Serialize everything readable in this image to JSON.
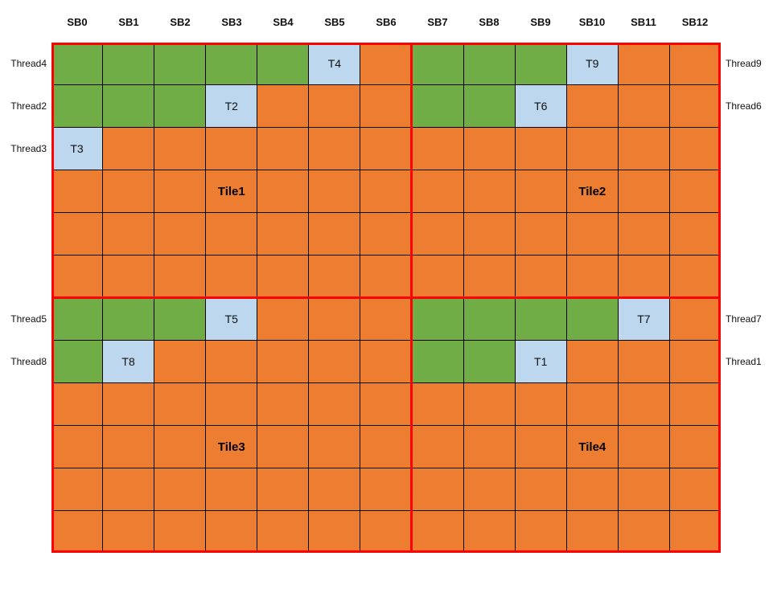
{
  "colors": {
    "green": "#70AD47",
    "orange": "#ED7D31",
    "blue": "#BDD7EE",
    "tile_border": "#FF0000",
    "cell_border": "#000000"
  },
  "column_headers": [
    "SB0",
    "SB1",
    "SB2",
    "SB3",
    "SB4",
    "SB5",
    "SB6",
    "SB7",
    "SB8",
    "SB9",
    "SB10",
    "SB11",
    "SB12"
  ],
  "row_labels_left": [
    {
      "row": 0,
      "text": "Thread4"
    },
    {
      "row": 1,
      "text": "Thread2"
    },
    {
      "row": 2,
      "text": "Thread3"
    },
    {
      "row": 6,
      "text": "Thread5"
    },
    {
      "row": 7,
      "text": "Thread8"
    }
  ],
  "row_labels_right": [
    {
      "row": 0,
      "text": "Thread9"
    },
    {
      "row": 1,
      "text": "Thread6"
    },
    {
      "row": 6,
      "text": "Thread7"
    },
    {
      "row": 7,
      "text": "Thread1"
    }
  ],
  "grid": {
    "rows": 12,
    "cols": 13,
    "color_key": {
      "g": "green",
      "o": "orange",
      "b": "blue"
    },
    "cell_colors": [
      "gggggbogggboo",
      "gggboooggbooo",
      "boooooooooooo",
      "ooooooooooooo",
      "ooooooooooooo",
      "ooooooooooooo",
      "gggboooggggbo",
      "gboooooggbooo",
      "ooooooooooooo",
      "ooooooooooooo",
      "ooooooooooooo",
      "ooooooooooooo"
    ]
  },
  "thread_cells": [
    {
      "row": 0,
      "col": 5,
      "text": "T4"
    },
    {
      "row": 0,
      "col": 10,
      "text": "T9"
    },
    {
      "row": 1,
      "col": 3,
      "text": "T2"
    },
    {
      "row": 1,
      "col": 9,
      "text": "T6"
    },
    {
      "row": 2,
      "col": 0,
      "text": "T3"
    },
    {
      "row": 6,
      "col": 3,
      "text": "T5"
    },
    {
      "row": 6,
      "col": 11,
      "text": "T7"
    },
    {
      "row": 7,
      "col": 1,
      "text": "T8"
    },
    {
      "row": 7,
      "col": 9,
      "text": "T1"
    }
  ],
  "tile_labels": [
    {
      "row": 3,
      "col": 3,
      "text": "Tile1"
    },
    {
      "row": 3,
      "col": 10,
      "text": "Tile2"
    },
    {
      "row": 9,
      "col": 3,
      "text": "Tile3"
    },
    {
      "row": 9,
      "col": 10,
      "text": "Tile4"
    }
  ],
  "tiles": [
    {
      "name": "Tile1",
      "rows": "0-5",
      "cols": "SB0-SB6"
    },
    {
      "name": "Tile2",
      "rows": "0-5",
      "cols": "SB7-SB12"
    },
    {
      "name": "Tile3",
      "rows": "6-11",
      "cols": "SB0-SB6"
    },
    {
      "name": "Tile4",
      "rows": "6-11",
      "cols": "SB7-SB12"
    }
  ]
}
